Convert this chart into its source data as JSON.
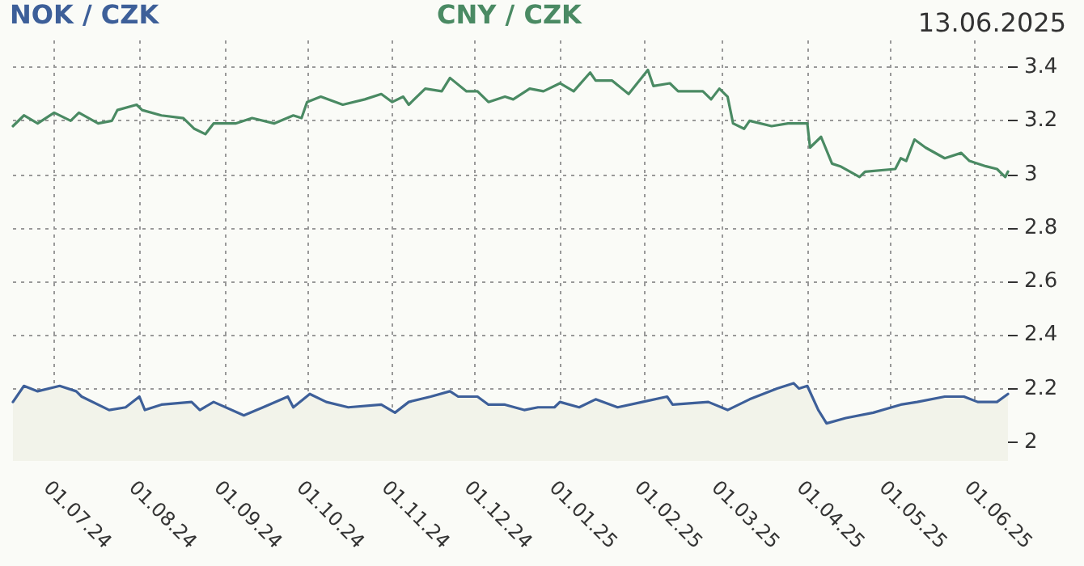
{
  "chart_data": {
    "type": "line",
    "title": "13.06.2025",
    "legend": "top",
    "grid": true,
    "marker": "none",
    "line_style": "solid",
    "xlim": [
      "2024-06-16",
      "2025-06-13"
    ],
    "ylim": [
      1.93,
      3.5
    ],
    "yticks": [
      2,
      2.2,
      2.4,
      2.6,
      2.8,
      3,
      3.2,
      3.4
    ],
    "xticks": [
      {
        "value": "2024-07-01",
        "label": "01.07.24"
      },
      {
        "value": "2024-08-01",
        "label": "01.08.24"
      },
      {
        "value": "2024-09-01",
        "label": "01.09.24"
      },
      {
        "value": "2024-10-01",
        "label": "01.10.24"
      },
      {
        "value": "2024-11-01",
        "label": "01.11.24"
      },
      {
        "value": "2024-12-01",
        "label": "01.12.24"
      },
      {
        "value": "2025-01-01",
        "label": "01.01.25"
      },
      {
        "value": "2025-02-01",
        "label": "01.02.25"
      },
      {
        "value": "2025-03-01",
        "label": "01.03.25"
      },
      {
        "value": "2025-04-01",
        "label": "01.04.25"
      },
      {
        "value": "2025-05-01",
        "label": "01.05.25"
      },
      {
        "value": "2025-06-01",
        "label": "01.06.25"
      }
    ],
    "series": [
      {
        "name": "NOK / CZK",
        "type": "area",
        "color": "#3d5f99",
        "x": [
          "2024-06-16",
          "2024-06-20",
          "2024-06-25",
          "2024-07-03",
          "2024-07-09",
          "2024-07-11",
          "2024-07-21",
          "2024-07-27",
          "2024-08-01",
          "2024-08-03",
          "2024-08-09",
          "2024-08-20",
          "2024-08-23",
          "2024-08-28",
          "2024-09-08",
          "2024-09-15",
          "2024-09-24",
          "2024-09-26",
          "2024-10-02",
          "2024-10-08",
          "2024-10-16",
          "2024-10-28",
          "2024-11-02",
          "2024-11-07",
          "2024-11-15",
          "2024-11-22",
          "2024-11-25",
          "2024-12-02",
          "2024-12-06",
          "2024-12-12",
          "2024-12-19",
          "2024-12-24",
          "2024-12-30",
          "2025-01-01",
          "2025-01-08",
          "2025-01-14",
          "2025-01-22",
          "2025-01-31",
          "2025-02-09",
          "2025-02-11",
          "2025-02-24",
          "2025-03-03",
          "2025-03-11",
          "2025-03-21",
          "2025-03-27",
          "2025-03-29",
          "2025-04-01",
          "2025-04-05",
          "2025-04-08",
          "2025-04-15",
          "2025-04-25",
          "2025-05-05",
          "2025-05-11",
          "2025-05-21",
          "2025-05-28",
          "2025-06-02",
          "2025-06-09",
          "2025-06-13"
        ],
        "values": [
          2.15,
          2.21,
          2.19,
          2.21,
          2.19,
          2.17,
          2.12,
          2.13,
          2.17,
          2.12,
          2.14,
          2.15,
          2.12,
          2.15,
          2.1,
          2.13,
          2.17,
          2.13,
          2.18,
          2.15,
          2.13,
          2.14,
          2.11,
          2.15,
          2.17,
          2.19,
          2.17,
          2.17,
          2.14,
          2.14,
          2.12,
          2.13,
          2.13,
          2.15,
          2.13,
          2.16,
          2.13,
          2.15,
          2.17,
          2.14,
          2.15,
          2.12,
          2.16,
          2.2,
          2.22,
          2.2,
          2.21,
          2.12,
          2.07,
          2.09,
          2.11,
          2.14,
          2.15,
          2.17,
          2.17,
          2.15,
          2.15,
          2.18
        ]
      },
      {
        "name": "CNY / CZK",
        "color": "#4a8a63",
        "x": [
          "2024-06-16",
          "2024-06-20",
          "2024-06-25",
          "2024-07-01",
          "2024-07-07",
          "2024-07-10",
          "2024-07-17",
          "2024-07-22",
          "2024-07-24",
          "2024-07-31",
          "2024-08-02",
          "2024-08-09",
          "2024-08-17",
          "2024-08-21",
          "2024-08-25",
          "2024-08-28",
          "2024-09-05",
          "2024-09-11",
          "2024-09-19",
          "2024-09-26",
          "2024-09-29",
          "2024-10-01",
          "2024-10-06",
          "2024-10-14",
          "2024-10-22",
          "2024-10-28",
          "2024-11-01",
          "2024-11-05",
          "2024-11-07",
          "2024-11-13",
          "2024-11-19",
          "2024-11-22",
          "2024-11-28",
          "2024-12-02",
          "2024-12-06",
          "2024-12-12",
          "2024-12-15",
          "2024-12-21",
          "2024-12-26",
          "2025-01-01",
          "2025-01-06",
          "2025-01-12",
          "2025-01-14",
          "2025-01-20",
          "2025-01-26",
          "2025-02-02",
          "2025-02-04",
          "2025-02-10",
          "2025-02-13",
          "2025-02-22",
          "2025-02-25",
          "2025-02-28",
          "2025-03-03",
          "2025-03-05",
          "2025-03-09",
          "2025-03-11",
          "2025-03-19",
          "2025-03-25",
          "2025-04-01",
          "2025-04-02",
          "2025-04-06",
          "2025-04-10",
          "2025-04-13",
          "2025-04-20",
          "2025-04-22",
          "2025-05-03",
          "2025-05-05",
          "2025-05-07",
          "2025-05-10",
          "2025-05-14",
          "2025-05-21",
          "2025-05-27",
          "2025-05-30",
          "2025-06-05",
          "2025-06-09",
          "2025-06-12",
          "2025-06-13"
        ],
        "values": [
          3.18,
          3.22,
          3.19,
          3.23,
          3.2,
          3.23,
          3.19,
          3.2,
          3.24,
          3.26,
          3.24,
          3.22,
          3.21,
          3.17,
          3.15,
          3.19,
          3.19,
          3.21,
          3.19,
          3.22,
          3.21,
          3.27,
          3.29,
          3.26,
          3.28,
          3.3,
          3.27,
          3.29,
          3.26,
          3.32,
          3.31,
          3.36,
          3.31,
          3.31,
          3.27,
          3.29,
          3.28,
          3.32,
          3.31,
          3.34,
          3.31,
          3.38,
          3.35,
          3.35,
          3.3,
          3.39,
          3.33,
          3.34,
          3.31,
          3.31,
          3.28,
          3.32,
          3.29,
          3.19,
          3.17,
          3.2,
          3.18,
          3.19,
          3.19,
          3.1,
          3.14,
          3.04,
          3.03,
          2.99,
          3.01,
          3.02,
          3.06,
          3.05,
          3.13,
          3.1,
          3.06,
          3.08,
          3.05,
          3.03,
          3.02,
          2.99,
          3.01
        ]
      }
    ]
  }
}
